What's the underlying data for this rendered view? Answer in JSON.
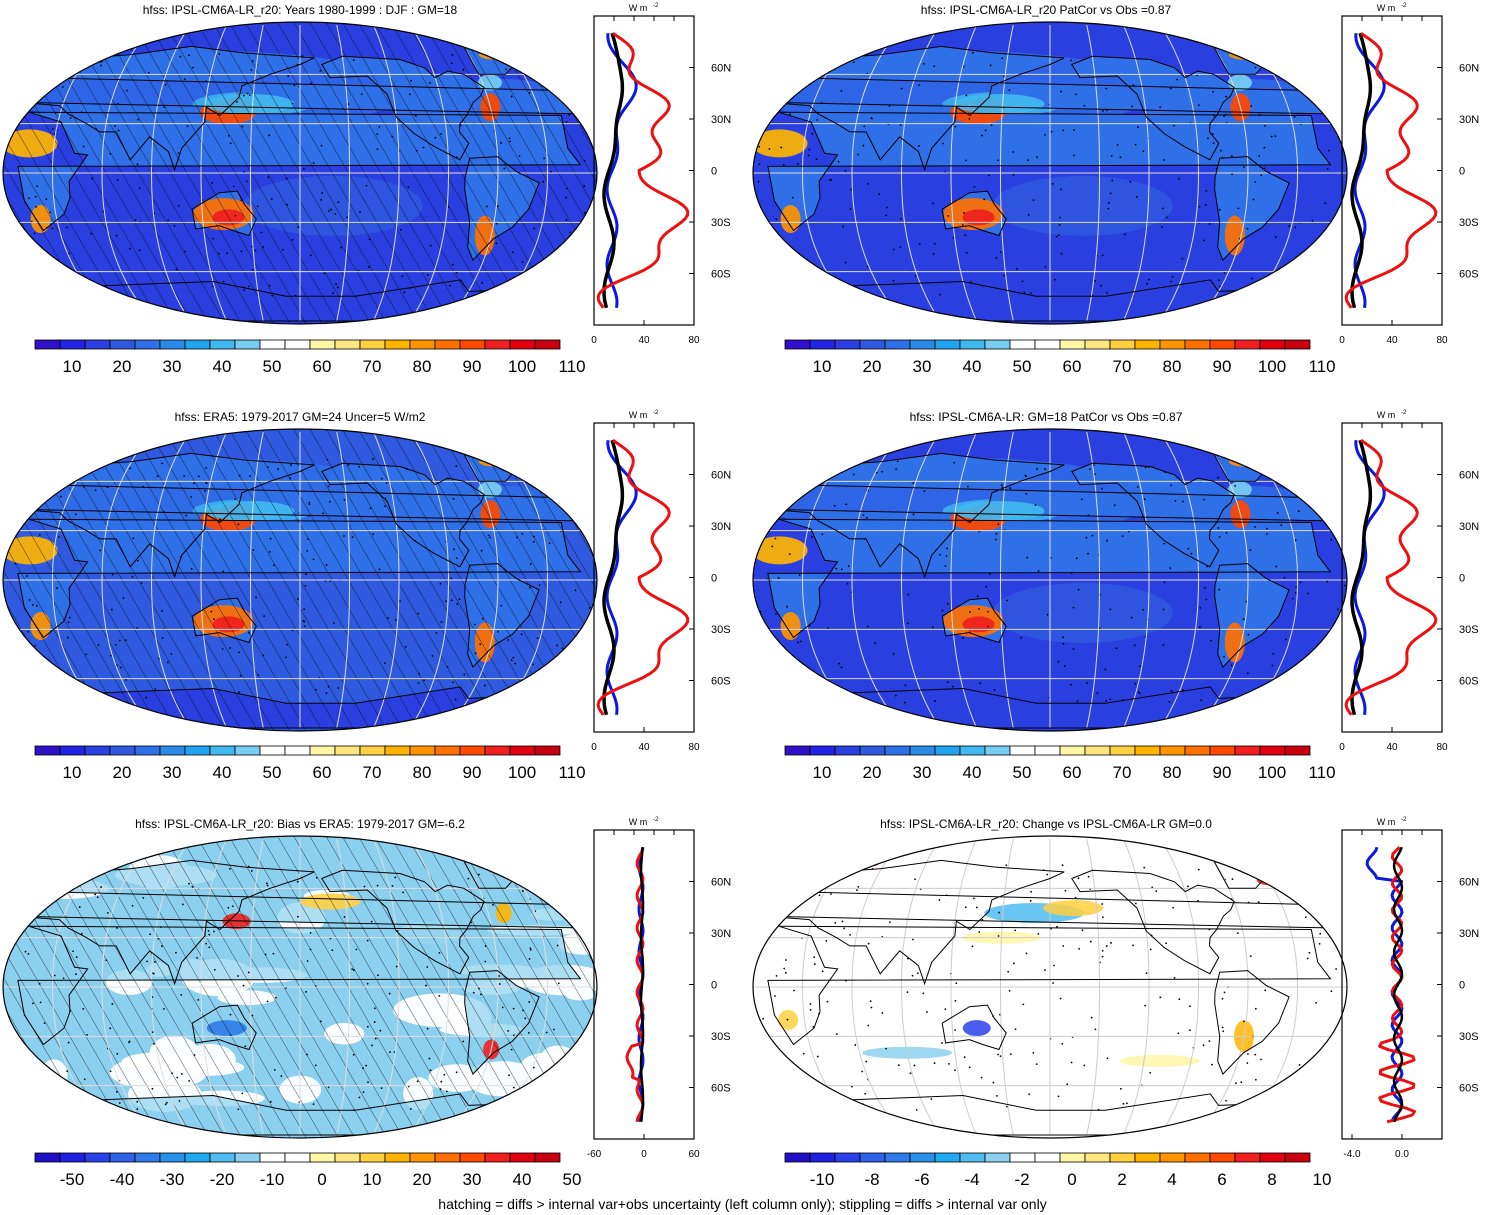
{
  "panels": [
    {
      "title": "hfss: IPSL-CM6A-LR_r20: Years 1980-1999 : DJF : GM=18",
      "kind": "abs",
      "hatched": true,
      "stippled": true
    },
    {
      "title": "hfss: IPSL-CM6A-LR_r20 PatCor vs Obs =0.87",
      "kind": "abs",
      "hatched": false,
      "stippled": true
    },
    {
      "title": "hfss: ERA5: 1979-2017 GM=24 Uncer=5 W/m2",
      "kind": "abs",
      "hatched": true,
      "stippled": true
    },
    {
      "title": "hfss: IPSL-CM6A-LR: GM=18 PatCor vs Obs =0.87",
      "kind": "abs",
      "hatched": false,
      "stippled": true
    },
    {
      "title": "hfss: IPSL-CM6A-LR_r20: Bias vs ERA5: 1979-2017 GM=-6.2",
      "kind": "bias",
      "hatched": true,
      "stippled": true
    },
    {
      "title": "hfss: IPSL-CM6A-LR_r20: Change vs IPSL-CM6A-LR GM=0.0",
      "kind": "change",
      "hatched": false,
      "stippled": true
    }
  ],
  "profile_units": "W m",
  "profile_units_exp": "-2",
  "lat_labels": [
    "60N",
    "30N",
    "0",
    "30S",
    "60S"
  ],
  "profile_xticks": {
    "abs": [
      "0",
      "40",
      "80"
    ],
    "bias": [
      "-60",
      "0",
      "60"
    ],
    "change": [
      "-4.0",
      "0.0"
    ]
  },
  "colorbar_labels": {
    "abs": [
      "10",
      "20",
      "30",
      "40",
      "50",
      "60",
      "70",
      "80",
      "90",
      "100",
      "110"
    ],
    "bias": [
      "-50",
      "-40",
      "-30",
      "-20",
      "-10",
      "0",
      "10",
      "20",
      "30",
      "40",
      "50"
    ],
    "change": [
      "-10",
      "-8",
      "-6",
      "-4",
      "-2",
      "0",
      "2",
      "4",
      "6",
      "8",
      "10"
    ]
  },
  "colors": {
    "abs_scale": [
      "#3010c8",
      "#2323e6",
      "#2a3fe0",
      "#2f5ae0",
      "#2f6fe8",
      "#2a8ae8",
      "#20a4f0",
      "#40b8f0",
      "#78cdf2",
      "#ffffff",
      "#ffffff",
      "#fff6a6",
      "#ffe680",
      "#ffd040",
      "#ffb400",
      "#ff9400",
      "#ff7000",
      "#ff4800",
      "#f02020",
      "#e00010",
      "#c80010"
    ],
    "diff_scale": [
      "#2010c8",
      "#2020e0",
      "#2a40e8",
      "#3060e8",
      "#2f7ce8",
      "#2890e8",
      "#20a8f0",
      "#50bcf0",
      "#8cd0f0",
      "#ffffff",
      "#ffffff",
      "#fff6a6",
      "#ffe680",
      "#ffd040",
      "#ffb400",
      "#ff9400",
      "#ff7000",
      "#ff4800",
      "#f02020",
      "#e00010",
      "#c80010"
    ],
    "profile_model": "#000000",
    "profile_obs": "#0a18e0",
    "profile_bias": "#ee1010"
  },
  "footer": "hatching = diffs > internal var+obs uncertainty (left column only); stippling = diffs > internal var only"
}
